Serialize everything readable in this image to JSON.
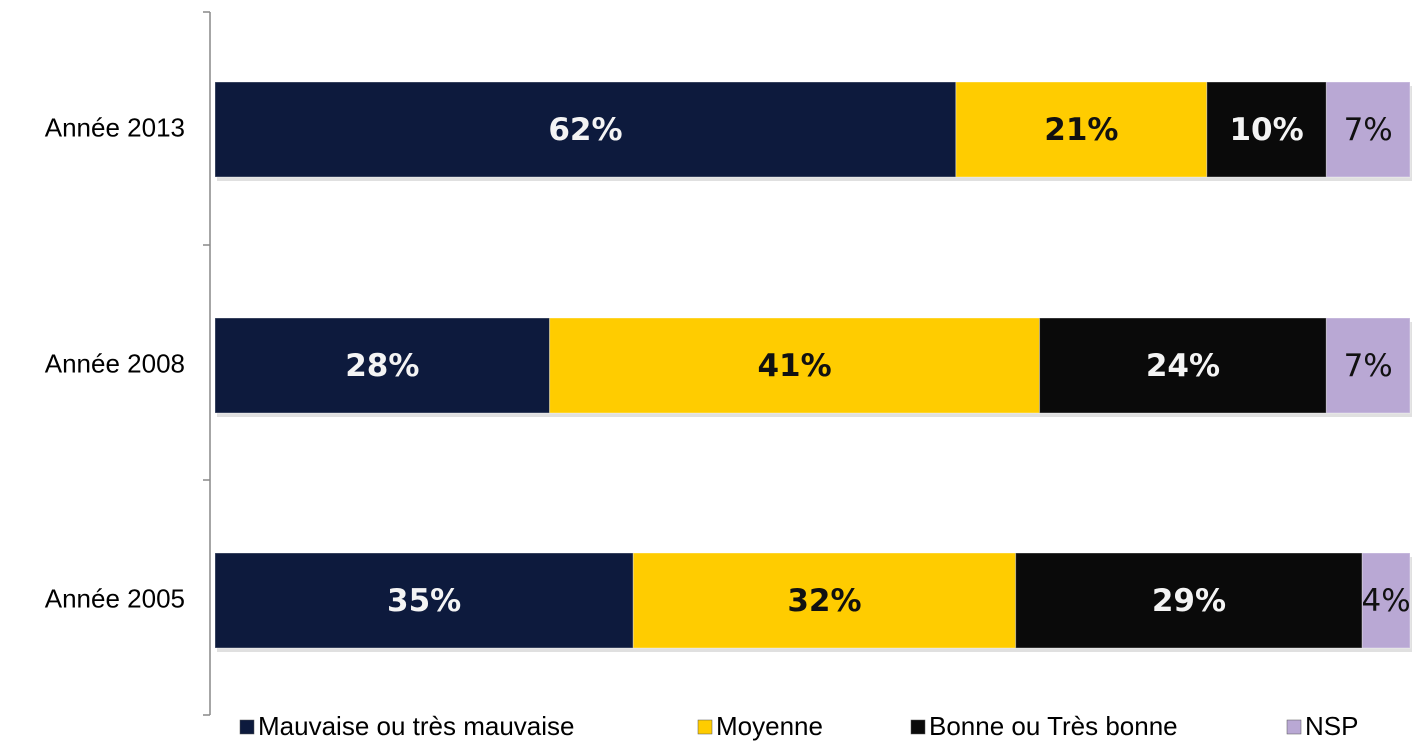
{
  "chart_data": {
    "type": "stacked_bar_horizontal",
    "categories": [
      "Année 2013",
      "Année 2008",
      "Année 2005"
    ],
    "series": [
      {
        "name": "Mauvaise ou très mauvaise",
        "color": "#0d1a3d",
        "values": [
          62,
          28,
          35
        ],
        "value_labels": [
          "62%",
          "28%",
          "35%"
        ]
      },
      {
        "name": "Moyenne",
        "color": "#ffcc00",
        "values": [
          21,
          41,
          32
        ],
        "value_labels": [
          "21%",
          "41%",
          "32%"
        ]
      },
      {
        "name": "Bonne ou Très bonne",
        "color": "#0a0a0a",
        "values": [
          10,
          24,
          29
        ],
        "value_labels": [
          "10%",
          "24%",
          "29%"
        ]
      },
      {
        "name": "NSP",
        "color": "#b9a8d4",
        "values": [
          7,
          7,
          4
        ],
        "value_labels": [
          "7%",
          "7%",
          "4%"
        ]
      }
    ],
    "legend": "bottom"
  }
}
